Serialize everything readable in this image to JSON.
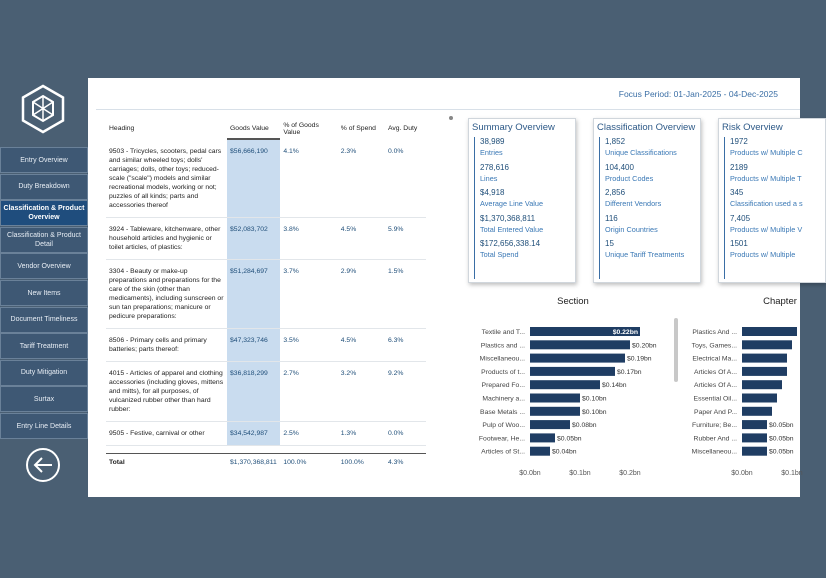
{
  "sidebar": {
    "nav": [
      "Entry Overview",
      "Duty Breakdown",
      "Classification & Product Overview",
      "Classification & Product Detail",
      "Vendor Overview",
      "New Items",
      "Document Timeliness",
      "Tariff Treatment",
      "Duty Mitigation",
      "Surtax",
      "Entry Line Details"
    ],
    "active": 2
  },
  "header": {
    "focus_period": "Focus Period: 01-Jan-2025 - 04-Dec-2025"
  },
  "table": {
    "columns": [
      "Heading",
      "Goods Value",
      "% of Goods Value",
      "% of Spend",
      "Avg. Duty"
    ],
    "rows": [
      [
        "9503 - Tricycles, scooters, pedal cars and similar wheeled toys; dolls' carriages; dolls, other toys; reduced-scale (\"scale\") models and similar recreational models, working or not; puzzles of all kinds; parts and accessories thereof",
        "$56,666,190",
        "4.1%",
        "2.3%",
        "0.0%"
      ],
      [
        "3924 - Tableware, kitchenware, other household articles and hygienic or toilet articles, of plastics:",
        "$52,083,702",
        "3.8%",
        "4.5%",
        "5.9%"
      ],
      [
        "3304 - Beauty or make-up preparations and preparations for the care of the skin (other than medicaments), including sunscreen or sun tan preparations; manicure or pedicure preparations:",
        "$51,284,697",
        "3.7%",
        "2.9%",
        "1.5%"
      ],
      [
        "8506 - Primary cells and primary batteries; parts thereof:",
        "$47,323,746",
        "3.5%",
        "4.5%",
        "6.3%"
      ],
      [
        "4015 - Articles of apparel and clothing accessories (including gloves, mittens and mitts), for all purposes, of vulcanized rubber other than hard rubber:",
        "$36,818,299",
        "2.7%",
        "3.2%",
        "9.2%"
      ],
      [
        "9505 - Festive, carnival or other",
        "$34,542,987",
        "2.5%",
        "1.3%",
        "0.0%"
      ]
    ],
    "total": [
      "Total",
      "$1,370,368,811",
      "100.0%",
      "100.0%",
      "4.3%"
    ]
  },
  "cards": [
    {
      "title": "Summary Overview",
      "items": [
        {
          "value": "38,989",
          "label": "Entries"
        },
        {
          "value": "278,616",
          "label": "Lines"
        },
        {
          "value": "$4,918",
          "label": "Average Line Value"
        },
        {
          "value": "$1,370,368,811",
          "label": "Total Entered Value"
        },
        {
          "value": "$172,656,338.14",
          "label": "Total Spend"
        }
      ]
    },
    {
      "title": "Classification Overview",
      "items": [
        {
          "value": "1,852",
          "label": "Unique Classifications"
        },
        {
          "value": "104,400",
          "label": "Product Codes"
        },
        {
          "value": "2,856",
          "label": "Different Vendors"
        },
        {
          "value": "116",
          "label": "Origin Countries"
        },
        {
          "value": "15",
          "label": "Unique Tariff Treatments"
        }
      ]
    },
    {
      "title": "Risk Overview",
      "items": [
        {
          "value": "1972",
          "label": "Products w/ Multiple C"
        },
        {
          "value": "2189",
          "label": "Products w/ Multiple T"
        },
        {
          "value": "345",
          "label": "Classification used a s"
        },
        {
          "value": "7,405",
          "label": "Products w/ Multiple V"
        },
        {
          "value": "1501",
          "label": "Products w/ Multiple"
        }
      ]
    }
  ],
  "chart_data": [
    {
      "type": "bar",
      "title": "Section",
      "color": "#1f3d63",
      "categories": [
        "Textile and T...",
        "Plastics and ...",
        "Miscellaneou...",
        "Products of t...",
        "Prepared Fo...",
        "Machinery a...",
        "Base Metals ...",
        "Pulp of Woo...",
        "Footwear, He...",
        "Articles of St..."
      ],
      "values": [
        0.22,
        0.2,
        0.19,
        0.17,
        0.14,
        0.1,
        0.1,
        0.08,
        0.05,
        0.04
      ],
      "value_labels": [
        "$0.22bn",
        "$0.20bn",
        "$0.19bn",
        "$0.17bn",
        "$0.14bn",
        "$0.10bn",
        "$0.10bn",
        "$0.08bn",
        "$0.05bn",
        "$0.04bn"
      ],
      "xlim": [
        0,
        0.28
      ],
      "xticks": [
        {
          "value": 0,
          "label": "$0.0bn"
        },
        {
          "value": 0.1,
          "label": "$0.1bn"
        },
        {
          "value": 0.2,
          "label": "$0.2bn"
        }
      ]
    },
    {
      "type": "bar",
      "title": "Chapter",
      "color": "#1f3d63",
      "categories": [
        "Plastics And ...",
        "Toys, Games...",
        "Electrical Ma...",
        "Articles Of A...",
        "Articles Of A...",
        "Essential Oil...",
        "Paper And P...",
        "Furniture; Be...",
        "Rubber And ...",
        "Miscellaneou..."
      ],
      "values": [
        0.11,
        0.1,
        0.09,
        0.09,
        0.08,
        0.07,
        0.06,
        0.05,
        0.05,
        0.05
      ],
      "value_labels": [
        null,
        null,
        null,
        null,
        null,
        null,
        null,
        "$0.05bn",
        "$0.05bn",
        "$0.05bn"
      ],
      "xlim": [
        0,
        0.28
      ],
      "xticks": [
        {
          "value": 0,
          "label": "$0.0bn"
        },
        {
          "value": 0.1,
          "label": "$0.1bn"
        }
      ]
    }
  ]
}
